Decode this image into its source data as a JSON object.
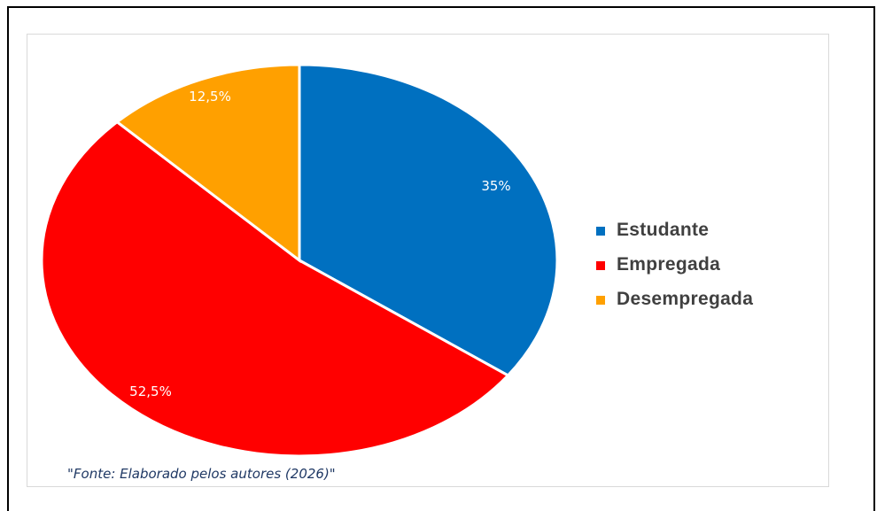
{
  "chart_data": {
    "type": "pie",
    "categories": [
      "Estudante",
      "Empregada",
      "Desempregada"
    ],
    "values": [
      35,
      52.5,
      12.5
    ],
    "data_labels": [
      "35%",
      "52,5%",
      "12,5%"
    ],
    "colors": [
      "#0070c0",
      "#ff0000",
      "#ffa000"
    ],
    "legend": {
      "placement": "right",
      "items": [
        {
          "label": "Estudante",
          "color": "#0070c0"
        },
        {
          "label": "Empregada",
          "color": "#ff0000"
        },
        {
          "label": "Desempregada",
          "color": "#ffa000"
        }
      ]
    },
    "start_angle_deg": 0,
    "direction": "clockwise"
  },
  "source_note": "\"Fonte: Elaborado pelos autores (2026)\""
}
